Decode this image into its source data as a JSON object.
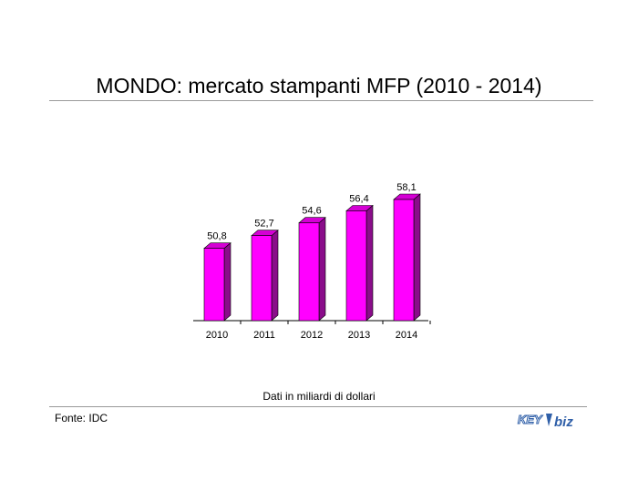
{
  "header": {
    "title": "MONDO: mercato stampanti MFP (2010 - 2014)"
  },
  "footer": {
    "note": "Dati in miliardi di dollari",
    "source": "Fonte: IDC",
    "logo_left": "KEY",
    "logo_right": "biz"
  },
  "chart_data": {
    "type": "bar",
    "title": "MONDO: mercato stampanti MFP (2010 - 2014)",
    "categories": [
      "2010",
      "2011",
      "2012",
      "2013",
      "2014"
    ],
    "values": [
      50.8,
      52.7,
      54.6,
      56.4,
      58.1
    ],
    "data_labels": [
      "50,8",
      "52,7",
      "54,6",
      "56,4",
      "58,1"
    ],
    "xlabel": "",
    "ylabel": "",
    "ylim": [
      40,
      60
    ],
    "grid": false,
    "legend": "none",
    "style": "3d-column"
  },
  "colors": {
    "bar_front": "#ff00ff",
    "bar_side": "#8a0d8a",
    "bar_top": "#d400d4",
    "axis": "#000000",
    "rule": "#9a9a9a",
    "logo_blue": "#2f5fa8"
  }
}
